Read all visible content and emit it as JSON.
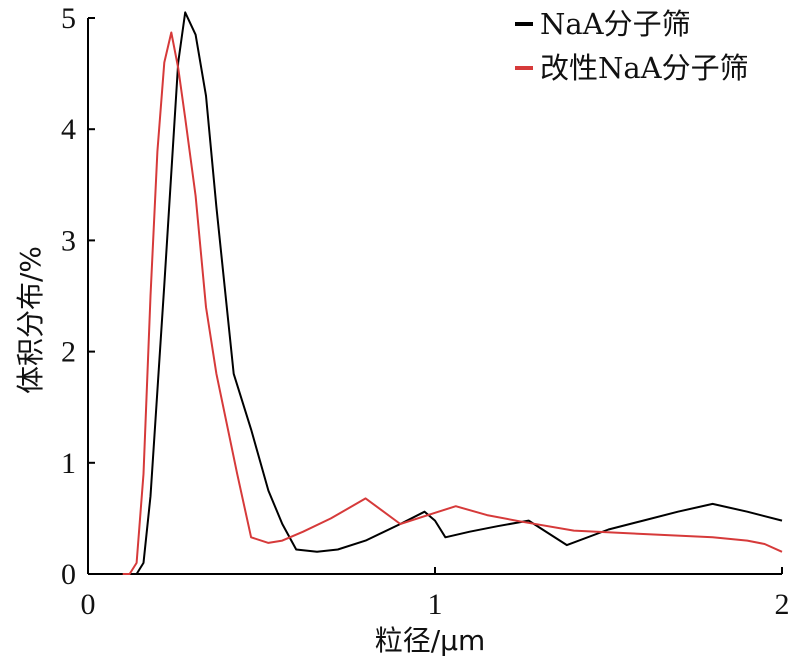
{
  "chart_data": {
    "type": "line",
    "title": "",
    "xlabel": "粒径/μm",
    "ylabel": "体积分布/%",
    "xlim": [
      0,
      2
    ],
    "ylim": [
      0,
      5
    ],
    "xticks": [
      0,
      1,
      2
    ],
    "yticks": [
      0,
      1,
      2,
      3,
      4,
      5
    ],
    "grid": false,
    "legend_position": "top-right",
    "series": [
      {
        "name": "NaA分子筛",
        "color": "#000000",
        "x": [
          0.12,
          0.14,
          0.16,
          0.18,
          0.22,
          0.26,
          0.28,
          0.31,
          0.34,
          0.37,
          0.42,
          0.47,
          0.52,
          0.56,
          0.6,
          0.66,
          0.72,
          0.8,
          0.9,
          0.97,
          1.0,
          1.03,
          1.1,
          1.18,
          1.27,
          1.38,
          1.5,
          1.6,
          1.7,
          1.8,
          1.9,
          2.0
        ],
        "y": [
          0,
          0,
          0.1,
          0.7,
          2.6,
          4.6,
          5.05,
          4.85,
          4.3,
          3.3,
          1.8,
          1.3,
          0.75,
          0.45,
          0.22,
          0.2,
          0.22,
          0.3,
          0.45,
          0.56,
          0.48,
          0.33,
          0.38,
          0.43,
          0.48,
          0.26,
          0.4,
          0.48,
          0.56,
          0.63,
          0.56,
          0.48
        ]
      },
      {
        "name": "改性NaA分子筛",
        "color": "#d63a3a",
        "x": [
          0.1,
          0.12,
          0.14,
          0.16,
          0.18,
          0.2,
          0.22,
          0.24,
          0.26,
          0.28,
          0.31,
          0.34,
          0.37,
          0.43,
          0.47,
          0.52,
          0.56,
          0.62,
          0.7,
          0.8,
          0.9,
          1.0,
          1.06,
          1.15,
          1.25,
          1.4,
          1.6,
          1.8,
          1.9,
          1.95,
          2.0
        ],
        "y": [
          0,
          0,
          0.1,
          0.9,
          2.5,
          3.8,
          4.6,
          4.87,
          4.55,
          4.1,
          3.4,
          2.4,
          1.8,
          0.9,
          0.33,
          0.28,
          0.3,
          0.38,
          0.5,
          0.68,
          0.45,
          0.55,
          0.61,
          0.53,
          0.47,
          0.39,
          0.36,
          0.33,
          0.3,
          0.27,
          0.2
        ]
      }
    ]
  }
}
